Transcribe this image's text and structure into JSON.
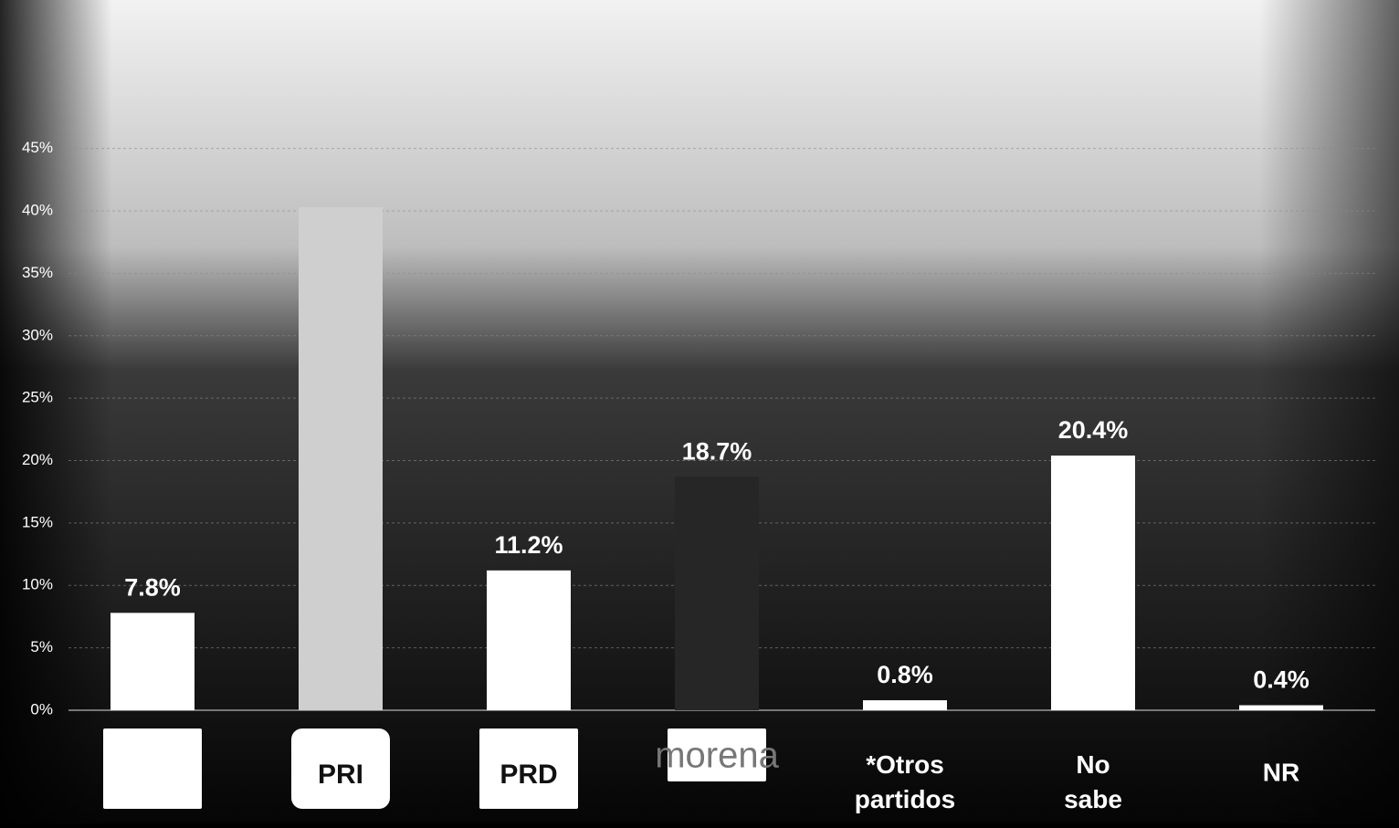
{
  "chart_data": {
    "type": "bar",
    "categories": [
      null,
      "PRI",
      "PRD",
      "morena",
      "*Otros partidos",
      "No sabe",
      "NR"
    ],
    "values": [
      7.8,
      40.3,
      11.2,
      18.7,
      0.8,
      20.4,
      0.4
    ],
    "value_labels": [
      "7.8%",
      null,
      "11.2%",
      "18.7%",
      "0.8%",
      "20.4%",
      "0.4%"
    ],
    "colors": [
      "#ffffff",
      "#cfcfcf",
      "#ffffff",
      "#262626",
      "#ffffff",
      "#ffffff",
      "#ffffff"
    ],
    "ylim": [
      0,
      46
    ],
    "yticks": [
      {
        "value": 0,
        "label": "0%"
      },
      {
        "value": 5,
        "label": "5%"
      },
      {
        "value": 10,
        "label": "10%"
      },
      {
        "value": 15,
        "label": "15%"
      },
      {
        "value": 20,
        "label": "20%"
      },
      {
        "value": 25,
        "label": "25%"
      },
      {
        "value": 30,
        "label": "30%"
      },
      {
        "value": 35,
        "label": "35%"
      },
      {
        "value": 40,
        "label": "40%"
      },
      {
        "value": 45,
        "label": "45%"
      }
    ],
    "grid": true
  }
}
